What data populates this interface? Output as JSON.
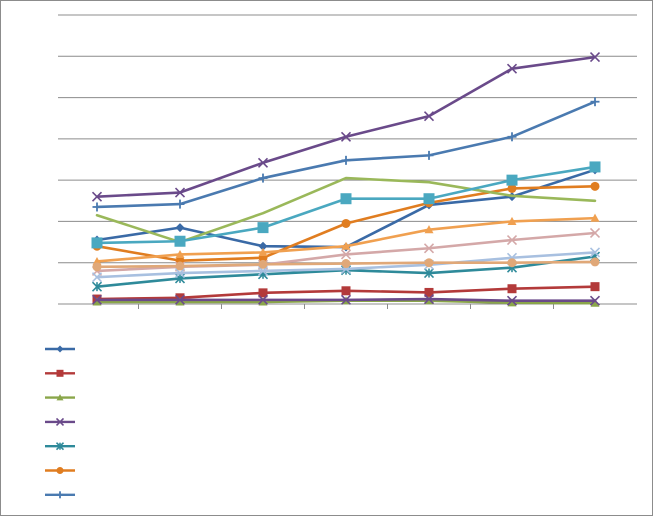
{
  "chart_data": {
    "type": "line",
    "title": "",
    "xlabel": "",
    "ylabel": "",
    "categories": [
      "",
      "",
      "",
      "",
      "",
      "",
      ""
    ],
    "ylim": [
      0,
      7
    ],
    "grid": true,
    "legend_position": "bottom-left",
    "series": [
      {
        "color": "#3a6aa6",
        "marker": "diamond",
        "values": [
          1.55,
          1.85,
          1.4,
          1.38,
          2.4,
          2.6,
          3.25
        ]
      },
      {
        "color": "#b33a3a",
        "marker": "square",
        "values": [
          0.12,
          0.15,
          0.27,
          0.32,
          0.28,
          0.37,
          0.42
        ]
      },
      {
        "color": "#8aa64a",
        "marker": "triangle",
        "values": [
          0.05,
          0.05,
          0.05,
          0.08,
          0.08,
          0.03,
          0.02
        ]
      },
      {
        "color": "#6a4a8a",
        "marker": "x",
        "values": [
          0.1,
          0.1,
          0.1,
          0.1,
          0.12,
          0.08,
          0.08
        ]
      },
      {
        "color": "#2e8a9a",
        "marker": "star",
        "values": [
          0.42,
          0.62,
          0.72,
          0.82,
          0.75,
          0.88,
          1.15
        ]
      },
      {
        "color": "#e07d20",
        "marker": "circle",
        "values": [
          1.4,
          1.05,
          1.12,
          1.95,
          2.45,
          2.8,
          2.85
        ]
      },
      {
        "color": "#4a7ab0",
        "marker": "plus",
        "values": [
          2.35,
          2.42,
          3.05,
          3.48,
          3.6,
          4.05,
          4.9
        ]
      },
      {
        "color": "#6a4a8a",
        "marker": "x",
        "values": [
          2.6,
          2.7,
          3.42,
          4.05,
          4.55,
          5.7,
          5.98
        ]
      },
      {
        "color": "#9ab85a",
        "marker": "none",
        "values": [
          2.15,
          1.5,
          2.2,
          3.05,
          2.95,
          2.62,
          2.5
        ]
      },
      {
        "color": "#4aa8c0",
        "marker": "square",
        "values": [
          1.48,
          1.52,
          1.85,
          2.55,
          2.55,
          3.0,
          3.32
        ]
      },
      {
        "color": "#f0a050",
        "marker": "triangle",
        "values": [
          1.03,
          1.2,
          1.25,
          1.4,
          1.8,
          2.0,
          2.08
        ]
      },
      {
        "color": "#d4a8a8",
        "marker": "x",
        "values": [
          0.8,
          0.9,
          0.95,
          1.2,
          1.35,
          1.55,
          1.72
        ]
      },
      {
        "color": "#a8c0e0",
        "marker": "x",
        "values": [
          0.65,
          0.75,
          0.8,
          0.85,
          0.95,
          1.12,
          1.25
        ]
      },
      {
        "color": "#e0a878",
        "marker": "circle",
        "values": [
          0.9,
          0.92,
          0.96,
          0.98,
          1.0,
          1.0,
          1.02
        ]
      }
    ],
    "legend": [
      {
        "color": "#3a6aa6",
        "marker": "diamond",
        "label": ""
      },
      {
        "color": "#b33a3a",
        "marker": "square",
        "label": ""
      },
      {
        "color": "#8aa64a",
        "marker": "triangle",
        "label": ""
      },
      {
        "color": "#6a4a8a",
        "marker": "x",
        "label": ""
      },
      {
        "color": "#2e8a9a",
        "marker": "star",
        "label": ""
      },
      {
        "color": "#e07d20",
        "marker": "circle",
        "label": ""
      },
      {
        "color": "#4a7ab0",
        "marker": "plus",
        "label": ""
      }
    ]
  }
}
